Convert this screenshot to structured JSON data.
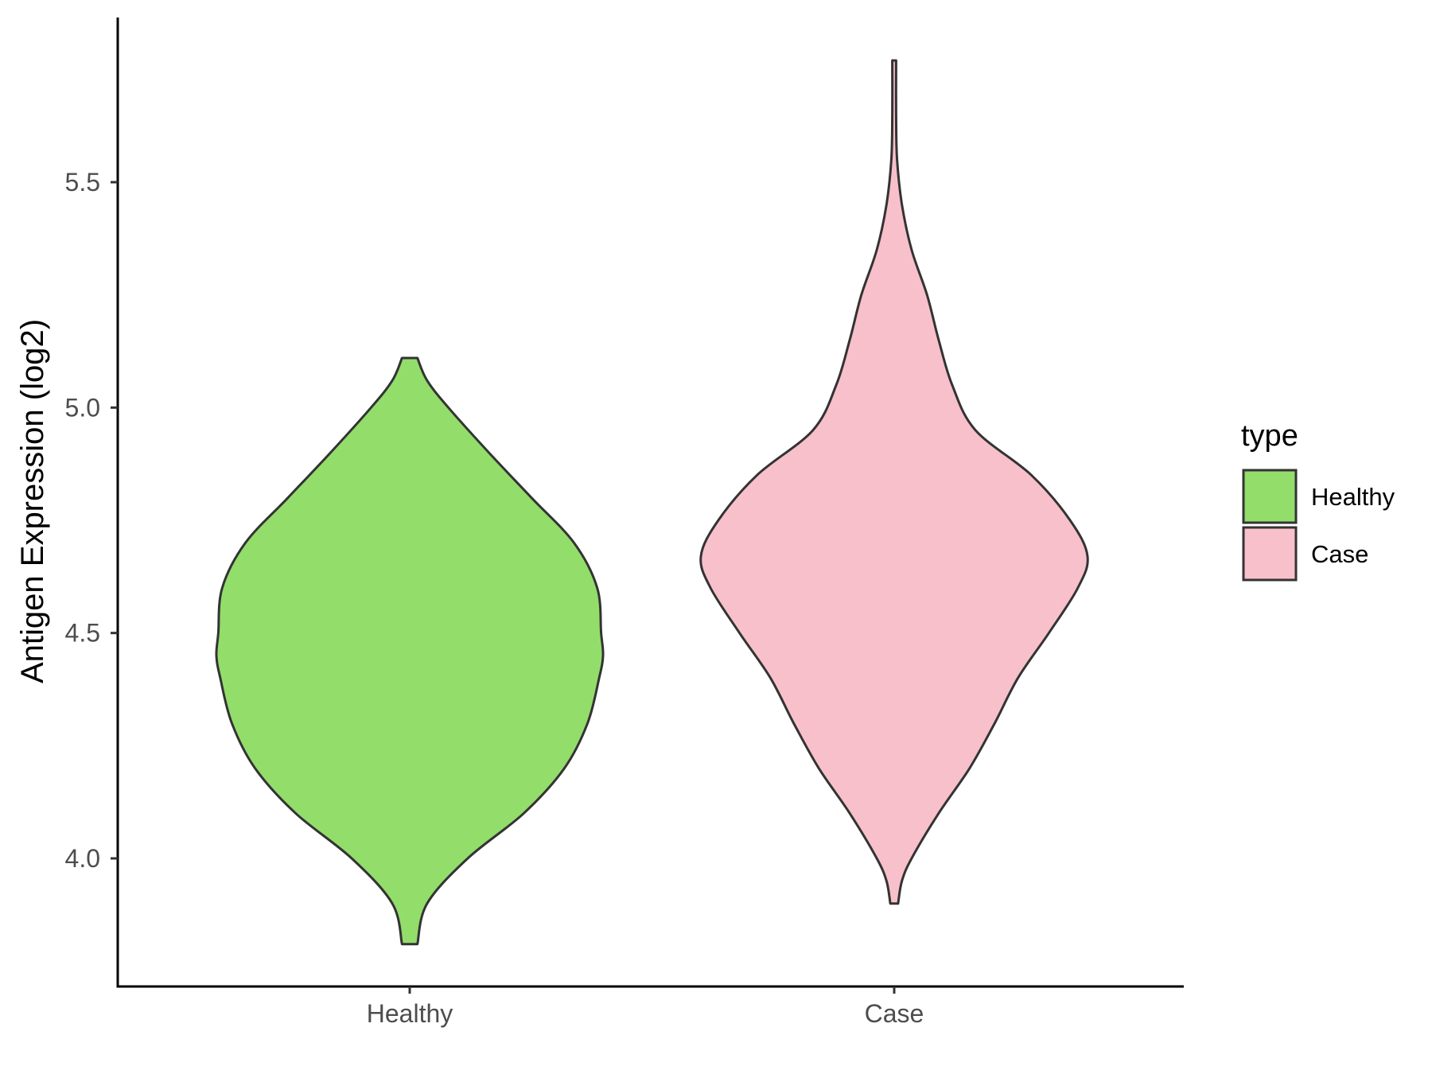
{
  "chart_data": {
    "type": "violin",
    "title": "",
    "xlabel": "",
    "ylabel": "Antigen Expression (log2)",
    "categories": [
      "Healthy",
      "Case"
    ],
    "ylim": [
      3.73,
      5.88
    ],
    "yticks": [
      4.0,
      4.5,
      5.0,
      5.5
    ],
    "ytick_labels": [
      "4.0",
      "4.5",
      "5.0",
      "5.5"
    ],
    "grid": false,
    "legend": {
      "title": "type",
      "position": "right",
      "entries": [
        {
          "label": "Healthy",
          "color": "#93dd6b"
        },
        {
          "label": "Case",
          "color": "#f8c0cb"
        }
      ]
    },
    "series": [
      {
        "category": "Healthy",
        "color": "#93dd6b",
        "min": 3.81,
        "max": 5.11,
        "density_profile": [
          [
            3.81,
            0.04
          ],
          [
            3.9,
            0.09
          ],
          [
            4.0,
            0.3
          ],
          [
            4.1,
            0.59
          ],
          [
            4.2,
            0.8
          ],
          [
            4.3,
            0.92
          ],
          [
            4.4,
            0.98
          ],
          [
            4.45,
            1.0
          ],
          [
            4.5,
            0.99
          ],
          [
            4.6,
            0.97
          ],
          [
            4.7,
            0.85
          ],
          [
            4.8,
            0.63
          ],
          [
            4.9,
            0.41
          ],
          [
            5.0,
            0.2
          ],
          [
            5.06,
            0.09
          ],
          [
            5.11,
            0.04
          ]
        ]
      },
      {
        "category": "Case",
        "color": "#f8c0cb",
        "min": 3.9,
        "max": 5.77,
        "density_profile": [
          [
            3.9,
            0.02
          ],
          [
            3.95,
            0.04
          ],
          [
            4.0,
            0.09
          ],
          [
            4.1,
            0.23
          ],
          [
            4.2,
            0.39
          ],
          [
            4.3,
            0.52
          ],
          [
            4.4,
            0.64
          ],
          [
            4.5,
            0.8
          ],
          [
            4.6,
            0.95
          ],
          [
            4.67,
            1.0
          ],
          [
            4.75,
            0.91
          ],
          [
            4.85,
            0.71
          ],
          [
            4.95,
            0.42
          ],
          [
            5.05,
            0.3
          ],
          [
            5.15,
            0.23
          ],
          [
            5.25,
            0.17
          ],
          [
            5.35,
            0.09
          ],
          [
            5.45,
            0.04
          ],
          [
            5.55,
            0.015
          ],
          [
            5.65,
            0.01
          ],
          [
            5.77,
            0.01
          ]
        ]
      }
    ]
  }
}
